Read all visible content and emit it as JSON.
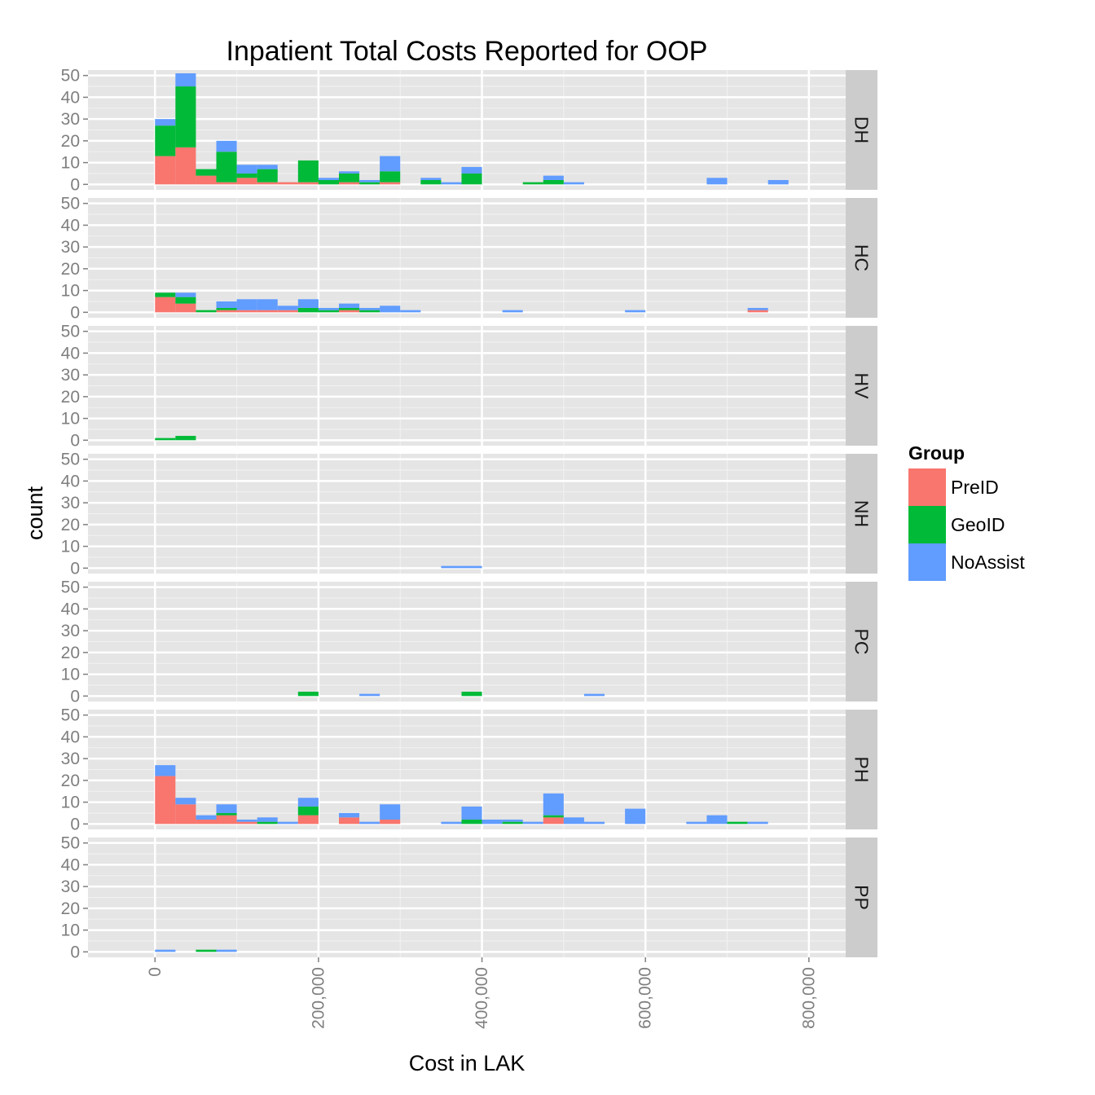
{
  "chart_data": {
    "type": "bar",
    "title": "Inpatient Total Costs Reported for OOP",
    "xlabel": "Cost in LAK",
    "ylabel": "count",
    "bin_width": 25000,
    "xlim": [
      -82000,
      845000
    ],
    "ylim": [
      -2.5,
      52.5
    ],
    "x_ticks": [
      0,
      200000,
      400000,
      600000,
      800000
    ],
    "x_tick_labels": [
      "0",
      "200,000",
      "400,000",
      "600,000",
      "800,000"
    ],
    "y_ticks": [
      0,
      10,
      20,
      30,
      40,
      50
    ],
    "y_tick_labels": [
      "0",
      "10",
      "20",
      "30",
      "40",
      "50"
    ],
    "stacked": true,
    "grid": true,
    "legend": {
      "title": "Group",
      "position": "right",
      "entries": [
        {
          "name": "PreID",
          "color": "#F8766D"
        },
        {
          "name": "GeoID",
          "color": "#00BA38"
        },
        {
          "name": "NoAssist",
          "color": "#619CFF"
        }
      ]
    },
    "facets": [
      {
        "label": "DH",
        "bins": [
          {
            "x": 0,
            "PreID": 13,
            "GeoID": 14,
            "NoAssist": 3
          },
          {
            "x": 25000,
            "PreID": 17,
            "GeoID": 28,
            "NoAssist": 6
          },
          {
            "x": 50000,
            "PreID": 4,
            "GeoID": 3,
            "NoAssist": 0
          },
          {
            "x": 75000,
            "PreID": 1,
            "GeoID": 14,
            "NoAssist": 5
          },
          {
            "x": 100000,
            "PreID": 3,
            "GeoID": 2,
            "NoAssist": 4
          },
          {
            "x": 125000,
            "PreID": 1,
            "GeoID": 6,
            "NoAssist": 2
          },
          {
            "x": 150000,
            "PreID": 1,
            "GeoID": 0,
            "NoAssist": 0
          },
          {
            "x": 175000,
            "PreID": 1,
            "GeoID": 10,
            "NoAssist": 0
          },
          {
            "x": 200000,
            "PreID": 0,
            "GeoID": 2,
            "NoAssist": 1
          },
          {
            "x": 225000,
            "PreID": 1,
            "GeoID": 4,
            "NoAssist": 1
          },
          {
            "x": 250000,
            "PreID": 0,
            "GeoID": 1,
            "NoAssist": 1
          },
          {
            "x": 275000,
            "PreID": 1,
            "GeoID": 5,
            "NoAssist": 7
          },
          {
            "x": 325000,
            "PreID": 0,
            "GeoID": 2,
            "NoAssist": 1
          },
          {
            "x": 350000,
            "PreID": 0,
            "GeoID": 0,
            "NoAssist": 1
          },
          {
            "x": 375000,
            "PreID": 0,
            "GeoID": 5,
            "NoAssist": 3
          },
          {
            "x": 450000,
            "PreID": 0,
            "GeoID": 1,
            "NoAssist": 0
          },
          {
            "x": 475000,
            "PreID": 0,
            "GeoID": 2,
            "NoAssist": 2
          },
          {
            "x": 500000,
            "PreID": 0,
            "GeoID": 0,
            "NoAssist": 1
          },
          {
            "x": 675000,
            "PreID": 0,
            "GeoID": 0,
            "NoAssist": 3
          },
          {
            "x": 750000,
            "PreID": 0,
            "GeoID": 0,
            "NoAssist": 2
          }
        ]
      },
      {
        "label": "HC",
        "bins": [
          {
            "x": 0,
            "PreID": 7,
            "GeoID": 2,
            "NoAssist": 0
          },
          {
            "x": 25000,
            "PreID": 4,
            "GeoID": 3,
            "NoAssist": 2
          },
          {
            "x": 50000,
            "PreID": 0,
            "GeoID": 1,
            "NoAssist": 0
          },
          {
            "x": 75000,
            "PreID": 1,
            "GeoID": 1,
            "NoAssist": 3
          },
          {
            "x": 100000,
            "PreID": 1,
            "GeoID": 0,
            "NoAssist": 5
          },
          {
            "x": 125000,
            "PreID": 1,
            "GeoID": 0,
            "NoAssist": 5
          },
          {
            "x": 150000,
            "PreID": 1,
            "GeoID": 0,
            "NoAssist": 2
          },
          {
            "x": 175000,
            "PreID": 0,
            "GeoID": 2,
            "NoAssist": 4
          },
          {
            "x": 200000,
            "PreID": 0,
            "GeoID": 1,
            "NoAssist": 1
          },
          {
            "x": 225000,
            "PreID": 1,
            "GeoID": 1,
            "NoAssist": 2
          },
          {
            "x": 250000,
            "PreID": 0,
            "GeoID": 1,
            "NoAssist": 1
          },
          {
            "x": 275000,
            "PreID": 0,
            "GeoID": 0,
            "NoAssist": 3
          },
          {
            "x": 300000,
            "PreID": 0,
            "GeoID": 0,
            "NoAssist": 1
          },
          {
            "x": 425000,
            "PreID": 0,
            "GeoID": 0,
            "NoAssist": 1
          },
          {
            "x": 575000,
            "PreID": 0,
            "GeoID": 0,
            "NoAssist": 1
          },
          {
            "x": 725000,
            "PreID": 1,
            "GeoID": 0,
            "NoAssist": 1
          }
        ]
      },
      {
        "label": "HV",
        "bins": [
          {
            "x": 0,
            "PreID": 0,
            "GeoID": 1,
            "NoAssist": 0
          },
          {
            "x": 25000,
            "PreID": 0,
            "GeoID": 2,
            "NoAssist": 0
          }
        ]
      },
      {
        "label": "NH",
        "bins": [
          {
            "x": 350000,
            "PreID": 0,
            "GeoID": 0,
            "NoAssist": 1
          },
          {
            "x": 375000,
            "PreID": 0,
            "GeoID": 0,
            "NoAssist": 1
          }
        ]
      },
      {
        "label": "PC",
        "bins": [
          {
            "x": 175000,
            "PreID": 0,
            "GeoID": 2,
            "NoAssist": 0
          },
          {
            "x": 250000,
            "PreID": 0,
            "GeoID": 0,
            "NoAssist": 1
          },
          {
            "x": 375000,
            "PreID": 0,
            "GeoID": 2,
            "NoAssist": 0
          },
          {
            "x": 525000,
            "PreID": 0,
            "GeoID": 0,
            "NoAssist": 1
          }
        ]
      },
      {
        "label": "PH",
        "bins": [
          {
            "x": 0,
            "PreID": 22,
            "GeoID": 0,
            "NoAssist": 5
          },
          {
            "x": 25000,
            "PreID": 9,
            "GeoID": 0,
            "NoAssist": 3
          },
          {
            "x": 50000,
            "PreID": 2,
            "GeoID": 0,
            "NoAssist": 2
          },
          {
            "x": 75000,
            "PreID": 4,
            "GeoID": 1,
            "NoAssist": 4
          },
          {
            "x": 100000,
            "PreID": 1,
            "GeoID": 0,
            "NoAssist": 1
          },
          {
            "x": 125000,
            "PreID": 0,
            "GeoID": 1,
            "NoAssist": 2
          },
          {
            "x": 150000,
            "PreID": 0,
            "GeoID": 0,
            "NoAssist": 1
          },
          {
            "x": 175000,
            "PreID": 4,
            "GeoID": 4,
            "NoAssist": 4
          },
          {
            "x": 225000,
            "PreID": 3,
            "GeoID": 0,
            "NoAssist": 2
          },
          {
            "x": 250000,
            "PreID": 0,
            "GeoID": 0,
            "NoAssist": 1
          },
          {
            "x": 275000,
            "PreID": 2,
            "GeoID": 0,
            "NoAssist": 7
          },
          {
            "x": 350000,
            "PreID": 0,
            "GeoID": 0,
            "NoAssist": 1
          },
          {
            "x": 375000,
            "PreID": 0,
            "GeoID": 2,
            "NoAssist": 6
          },
          {
            "x": 400000,
            "PreID": 0,
            "GeoID": 0,
            "NoAssist": 2
          },
          {
            "x": 425000,
            "PreID": 0,
            "GeoID": 1,
            "NoAssist": 1
          },
          {
            "x": 450000,
            "PreID": 0,
            "GeoID": 0,
            "NoAssist": 1
          },
          {
            "x": 475000,
            "PreID": 3,
            "GeoID": 1,
            "NoAssist": 10
          },
          {
            "x": 500000,
            "PreID": 0,
            "GeoID": 0,
            "NoAssist": 3
          },
          {
            "x": 525000,
            "PreID": 0,
            "GeoID": 0,
            "NoAssist": 1
          },
          {
            "x": 575000,
            "PreID": 0,
            "GeoID": 0,
            "NoAssist": 7
          },
          {
            "x": 650000,
            "PreID": 0,
            "GeoID": 0,
            "NoAssist": 1
          },
          {
            "x": 675000,
            "PreID": 0,
            "GeoID": 0,
            "NoAssist": 4
          },
          {
            "x": 700000,
            "PreID": 0,
            "GeoID": 1,
            "NoAssist": 0
          },
          {
            "x": 725000,
            "PreID": 0,
            "GeoID": 0,
            "NoAssist": 1
          }
        ]
      },
      {
        "label": "PP",
        "bins": [
          {
            "x": 0,
            "PreID": 0,
            "GeoID": 0,
            "NoAssist": 1
          },
          {
            "x": 50000,
            "PreID": 0,
            "GeoID": 1,
            "NoAssist": 0
          },
          {
            "x": 75000,
            "PreID": 0,
            "GeoID": 0,
            "NoAssist": 1
          }
        ]
      }
    ]
  }
}
